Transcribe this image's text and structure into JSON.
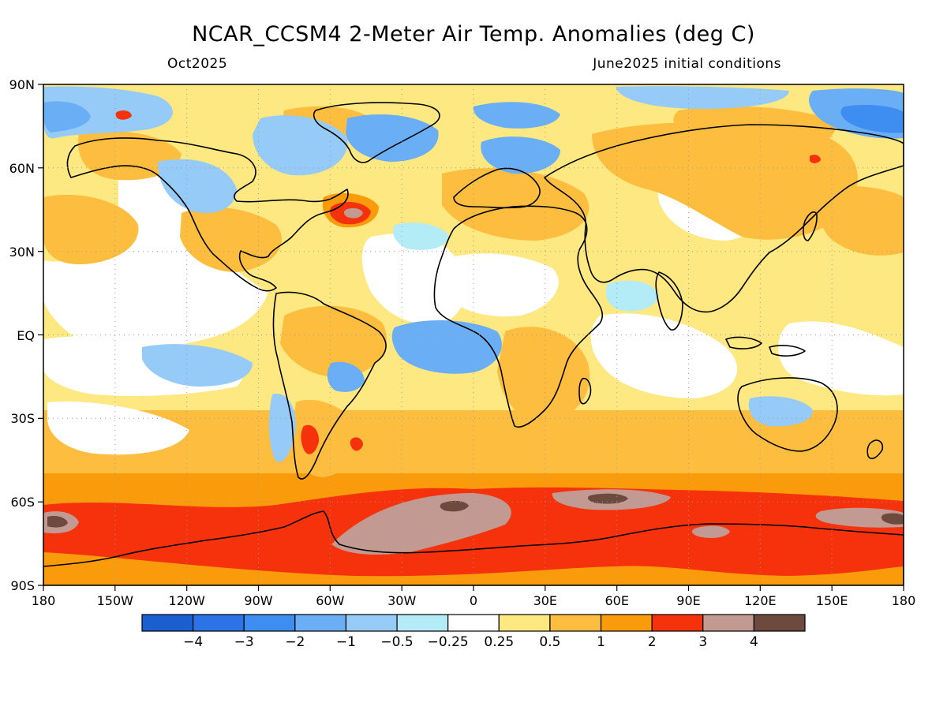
{
  "title": "NCAR_CCSM4 2-Meter Air Temp. Anomalies (deg C)",
  "valid_month": "Oct2025",
  "init_conditions": "June2025 initial conditions",
  "colors": {
    "c1": "#1a5fd0",
    "c2": "#2b73e6",
    "c3": "#3d8ef0",
    "c4": "#6aaef5",
    "c5": "#96cbf8",
    "c6": "#b3ecf7",
    "c7": "#ffffff",
    "c8": "#fde882",
    "c9": "#fdbd3e",
    "c10": "#fa9b0c",
    "c11": "#f5320c",
    "c12": "#c39a92",
    "c13": "#6e4a3e",
    "coast": "#000000",
    "grid": "#9a9a9a"
  },
  "map": {
    "lat_labels": [
      "90N",
      "60N",
      "30N",
      "EQ",
      "30S",
      "60S",
      "90S"
    ],
    "lon_labels": [
      "180",
      "150W",
      "120W",
      "90W",
      "60W",
      "30W",
      "0",
      "30E",
      "60E",
      "90E",
      "120E",
      "150E",
      "180"
    ]
  },
  "colorbar": {
    "colors": [
      "#1a5fd0",
      "#2b73e6",
      "#3d8ef0",
      "#6aaef5",
      "#96cbf8",
      "#b3ecf7",
      "#ffffff",
      "#fde882",
      "#fdbd3e",
      "#fa9b0c",
      "#f5320c",
      "#c39a92",
      "#6e4a3e"
    ],
    "labels": [
      "−4",
      "−3",
      "−2",
      "−1",
      "−0.5",
      "−0.25",
      "0.25",
      "0.5",
      "1",
      "2",
      "3",
      "4"
    ]
  }
}
